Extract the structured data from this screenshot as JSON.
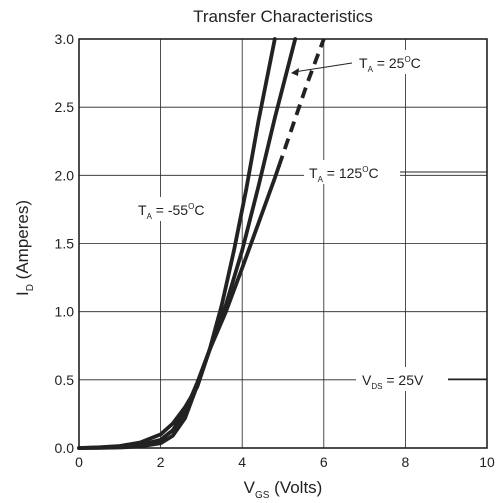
{
  "chart_data": {
    "type": "line",
    "title": "Transfer Characteristics",
    "xlabel": {
      "main": "V",
      "sub": "GS",
      "rest": " (Volts)"
    },
    "ylabel": {
      "main": "I",
      "sub": "D",
      "rest": " (Amperes)"
    },
    "xlim": [
      0,
      10
    ],
    "ylim": [
      0,
      3.0
    ],
    "grid": true,
    "x_ticks": [
      0,
      2,
      4,
      6,
      8,
      10
    ],
    "x_tick_labels": [
      "0",
      "2",
      "4",
      "6",
      "8",
      "10"
    ],
    "y_ticks": [
      0,
      0.5,
      1.0,
      1.5,
      2.0,
      2.5,
      3.0
    ],
    "y_tick_labels": [
      "0.0",
      "0.5",
      "1.0",
      "1.5",
      "2.0",
      "2.5",
      "3.0"
    ],
    "series": [
      {
        "x": [
          0,
          0.5,
          1.0,
          1.5,
          2.0,
          2.3,
          2.6,
          2.9,
          3.2,
          3.5,
          3.8,
          4.1,
          4.4,
          4.8
        ],
        "y": [
          0,
          0.005,
          0.015,
          0.04,
          0.1,
          0.18,
          0.3,
          0.45,
          0.72,
          1.05,
          1.45,
          1.9,
          2.4,
          3.0
        ],
        "dashed_from_x": null
      },
      {
        "x": [
          0,
          0.5,
          1.0,
          1.5,
          2.0,
          2.3,
          2.6,
          2.9,
          3.2,
          3.6,
          4.0,
          4.4,
          4.8,
          5.3
        ],
        "y": [
          0,
          0.002,
          0.008,
          0.022,
          0.06,
          0.13,
          0.27,
          0.48,
          0.72,
          1.05,
          1.45,
          1.92,
          2.42,
          3.0
        ],
        "dashed_from_x": null
      },
      {
        "x": [
          0,
          0.5,
          1.0,
          1.5,
          2.0,
          2.3,
          2.6,
          2.9,
          3.2,
          3.6,
          4.0,
          4.4,
          4.8,
          5.2,
          5.6,
          6.0
        ],
        "y": [
          0,
          0.001,
          0.004,
          0.012,
          0.035,
          0.09,
          0.22,
          0.46,
          0.72,
          1.0,
          1.32,
          1.65,
          1.98,
          2.33,
          2.68,
          3.0
        ],
        "dashed_from_x": 4.9
      }
    ],
    "annotations": [
      {
        "name": "ta-minus55-label",
        "pre": "T",
        "sub": "A",
        "post": " = -55",
        "sup": "O",
        "end": "C"
      },
      {
        "name": "ta-25-label",
        "pre": "T",
        "sub": "A",
        "post": " = 25",
        "sup": "O",
        "end": "C"
      },
      {
        "name": "ta-125-label",
        "pre": "T",
        "sub": "A",
        "post": " = 125",
        "sup": "O",
        "end": "C"
      },
      {
        "name": "vds-label",
        "pre": "V",
        "sub": "DS",
        "post": " = 25V",
        "sup": "",
        "end": ""
      }
    ],
    "colors": {
      "line": "#222222",
      "grid": "#222222",
      "frame": "#222222"
    }
  }
}
